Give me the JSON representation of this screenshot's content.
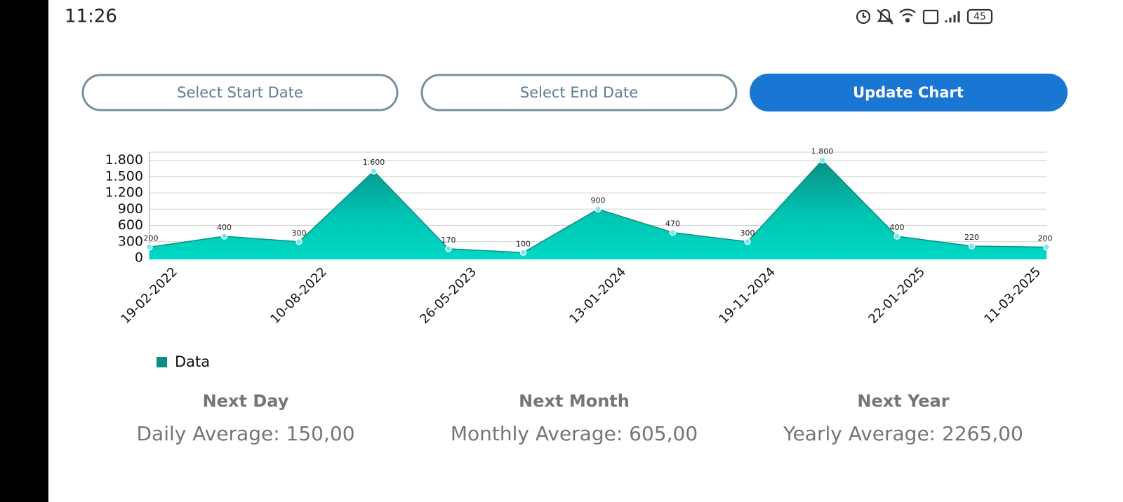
{
  "status_bar": {
    "time": "11:26",
    "battery": "45"
  },
  "buttons": [
    "Select Start Date",
    "Select End Date",
    "Update Chart"
  ],
  "chart_data": {
    "type": "area",
    "categories": [
      "19-02-2022",
      null,
      "10-08-2022",
      null,
      "26-05-2023",
      null,
      "13-01-2024",
      null,
      "19-11-2024",
      null,
      "22-01-2025",
      null,
      "11-03-2025"
    ],
    "series": [
      {
        "name": "Data",
        "color": "#0a8f86",
        "values": [
          200,
          400,
          300,
          1600,
          170,
          100,
          900,
          470,
          300,
          1800,
          400,
          220,
          200
        ],
        "value_labels": [
          "200",
          "400",
          "300",
          "1.600",
          "170",
          "100",
          "900",
          "470",
          "300",
          "1.800",
          "400",
          "220",
          "200"
        ]
      }
    ],
    "ylim": [
      0,
      1950
    ],
    "yticks": [
      0,
      300,
      600,
      900,
      {
        "value": 1200,
        "label": "1.200"
      },
      {
        "value": 1500,
        "label": "1.500"
      },
      {
        "value": 1800,
        "label": "1.800"
      }
    ],
    "grid": true,
    "legend": "bottom-left"
  },
  "stats": [
    {
      "title": "Next Day",
      "text": "Daily Average: 150,00"
    },
    {
      "title": "Next Month",
      "text": "Monthly Average: 605,00"
    },
    {
      "title": "Next Year",
      "text": "Yearly Average: 2265,00"
    }
  ]
}
